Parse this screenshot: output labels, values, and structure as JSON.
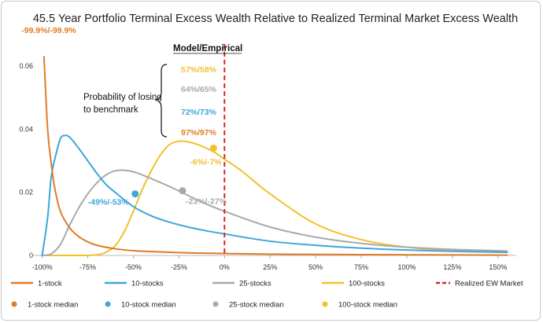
{
  "chart_data": {
    "type": "line",
    "title": "45.5 Year Portfolio Terminal Excess Wealth Relative to Realized Terminal Market Excess Wealth",
    "xlabel": "",
    "ylabel": "",
    "x_ticks": [
      "-100%",
      "-75%",
      "-50%",
      "-25%",
      "0%",
      "25%",
      "50%",
      "75%",
      "100%",
      "125%",
      "150%"
    ],
    "x_tick_values": [
      -100,
      -75,
      -50,
      -25,
      0,
      25,
      50,
      75,
      100,
      125,
      150
    ],
    "y_ticks": [
      "0",
      "0.02",
      "0.04",
      "0.06"
    ],
    "y_tick_values": [
      0,
      0.02,
      0.04,
      0.06
    ],
    "xlim": [
      -105,
      160
    ],
    "ylim": [
      0,
      0.069
    ],
    "grid": false,
    "legend_position": "bottom",
    "series": [
      {
        "name": "1-stock",
        "color": "#E07B28",
        "x": [
          -99,
          -97,
          -95,
          -93,
          -90,
          -85,
          -80,
          -75,
          -70,
          -60,
          -50,
          -40,
          -30,
          -20,
          -10,
          0,
          25,
          50,
          75,
          100,
          125,
          155
        ],
        "y": [
          0.063,
          0.04,
          0.029,
          0.021,
          0.014,
          0.0088,
          0.006,
          0.0043,
          0.0032,
          0.0021,
          0.0015,
          0.0012,
          0.001,
          0.0008,
          0.0007,
          0.0006,
          0.0004,
          0.0003,
          0.00025,
          0.0002,
          0.00015,
          0.0001
        ]
      },
      {
        "name": "10-stocks",
        "color": "#3DA7D9",
        "x": [
          -100,
          -97,
          -95,
          -92,
          -90,
          -88,
          -85,
          -80,
          -75,
          -70,
          -65,
          -60,
          -50,
          -40,
          -30,
          -20,
          -10,
          0,
          25,
          50,
          75,
          100,
          125,
          155
        ],
        "y": [
          0,
          0.012,
          0.025,
          0.033,
          0.037,
          0.038,
          0.0375,
          0.034,
          0.03,
          0.026,
          0.0225,
          0.02,
          0.0155,
          0.0125,
          0.0105,
          0.009,
          0.0078,
          0.0068,
          0.0045,
          0.0032,
          0.0023,
          0.0017,
          0.0013,
          0.001
        ]
      },
      {
        "name": "25-stocks",
        "color": "#A9A9A9",
        "x": [
          -100,
          -95,
          -90,
          -85,
          -80,
          -75,
          -70,
          -65,
          -60,
          -55,
          -50,
          -45,
          -40,
          -30,
          -20,
          -10,
          0,
          25,
          50,
          75,
          100,
          125,
          155
        ],
        "y": [
          0,
          0.0005,
          0.0035,
          0.0095,
          0.015,
          0.0195,
          0.023,
          0.0255,
          0.0268,
          0.027,
          0.0265,
          0.0255,
          0.0243,
          0.0218,
          0.019,
          0.0163,
          0.014,
          0.009,
          0.0058,
          0.0038,
          0.0026,
          0.0019,
          0.0014
        ]
      },
      {
        "name": "100-stocks",
        "color": "#F2C12E",
        "x": [
          -100,
          -80,
          -70,
          -65,
          -60,
          -55,
          -50,
          -45,
          -40,
          -35,
          -30,
          -25,
          -20,
          -15,
          -10,
          -5,
          0,
          10,
          25,
          50,
          75,
          100,
          125,
          155
        ],
        "y": [
          0,
          0,
          0.0002,
          0.001,
          0.003,
          0.0075,
          0.014,
          0.021,
          0.027,
          0.032,
          0.0352,
          0.0362,
          0.036,
          0.0352,
          0.034,
          0.0325,
          0.0305,
          0.0265,
          0.0195,
          0.01,
          0.005,
          0.0026,
          0.0015,
          0.001
        ]
      }
    ],
    "reference_line": {
      "name": "Realized EW Market",
      "x": 0,
      "color": "#D62728",
      "style": "dashed"
    },
    "medians": [
      {
        "name": "1-stock median",
        "color": "#E07B28",
        "x": -100,
        "y": null,
        "label": "-99.9%/-99.9%"
      },
      {
        "name": "10-stock median",
        "color": "#3DA7D9",
        "x": -49,
        "y": 0.0195,
        "label": "-49%/-53%"
      },
      {
        "name": "25-stock median",
        "color": "#A9A9A9",
        "x": -23,
        "y": 0.0205,
        "label": "-23%/-27%"
      },
      {
        "name": "100-stock median",
        "color": "#F2C12E",
        "x": -6,
        "y": 0.034,
        "label": "-6%/-7%"
      }
    ],
    "annotations": {
      "model_empirical": "Model/Empirical",
      "probability_line1": "Probability of losing",
      "probability_line2": "to benchmark",
      "probabilities": [
        {
          "text": "57%/58%",
          "color": "#F2C12E"
        },
        {
          "text": "64%/65%",
          "color": "#A9A9A9"
        },
        {
          "text": "72%/73%",
          "color": "#3DA7D9"
        },
        {
          "text": "97%/97%",
          "color": "#E07B28"
        }
      ]
    },
    "legend": [
      {
        "label": "1-stock",
        "kind": "line",
        "color": "#E07B28"
      },
      {
        "label": "10-stocks",
        "kind": "line",
        "color": "#3DA7D9"
      },
      {
        "label": "25-stocks",
        "kind": "line",
        "color": "#A9A9A9"
      },
      {
        "label": "100-stocks",
        "kind": "line",
        "color": "#F2C12E"
      },
      {
        "label": "Realized EW Market",
        "kind": "dash",
        "color": "#D62728"
      },
      {
        "label": "1-stock median",
        "kind": "dot",
        "color": "#E07B28"
      },
      {
        "label": "10-stock median",
        "kind": "dot",
        "color": "#3DA7D9"
      },
      {
        "label": "25-stock median",
        "kind": "dot",
        "color": "#A9A9A9"
      },
      {
        "label": "100-stock median",
        "kind": "dot",
        "color": "#F2C12E"
      }
    ]
  }
}
